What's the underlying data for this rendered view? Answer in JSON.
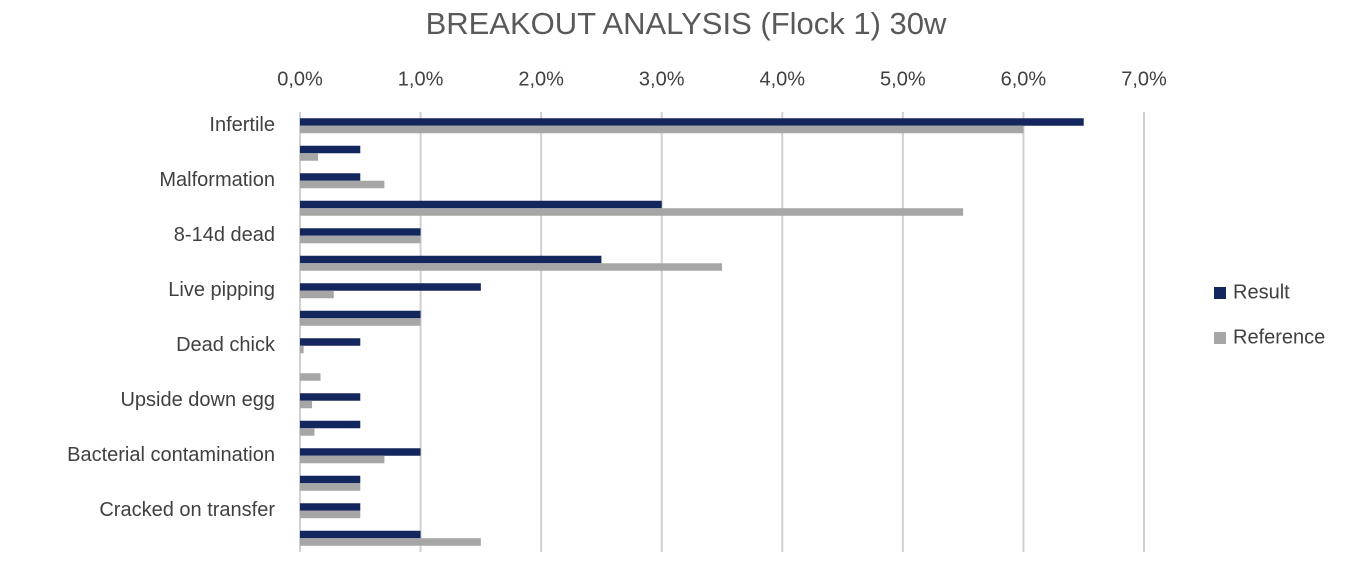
{
  "chart_data": {
    "type": "hbar",
    "title": "BREAKOUT ANALYSIS (Flock 1) 30w",
    "categories": [
      "Infertile",
      null,
      "Malformation",
      null,
      "8-14d dead",
      null,
      "Live pipping",
      null,
      "Dead chick",
      null,
      "Upside down egg",
      null,
      "Bacterial contamination",
      null,
      "Cracked on transfer",
      null
    ],
    "series": [
      {
        "name": "Result",
        "color": "#13275e",
        "values": [
          6.5,
          0.5,
          0.5,
          3.0,
          1.0,
          2.5,
          1.5,
          1.0,
          0.5,
          0,
          0.5,
          0.5,
          1.0,
          0.5,
          0.5,
          1.0
        ]
      },
      {
        "name": "Reference",
        "color": "#a6a6a6",
        "values": [
          6.0,
          0.15,
          0.7,
          5.5,
          1.0,
          3.5,
          0.28,
          1.0,
          0.03,
          0.17,
          0.1,
          0.12,
          0.7,
          0.5,
          0.5,
          1.5
        ]
      }
    ],
    "xlim": [
      0,
      7
    ],
    "xticks": [
      {
        "value": 0,
        "label": "0,0%"
      },
      {
        "value": 1,
        "label": "1,0%"
      },
      {
        "value": 2,
        "label": "2,0%"
      },
      {
        "value": 3,
        "label": "3,0%"
      },
      {
        "value": 4,
        "label": "4,0%"
      },
      {
        "value": 5,
        "label": "5,0%"
      },
      {
        "value": 6,
        "label": "6,0%"
      },
      {
        "value": 7,
        "label": "7,0%"
      }
    ],
    "grid": true,
    "legend": "right"
  }
}
